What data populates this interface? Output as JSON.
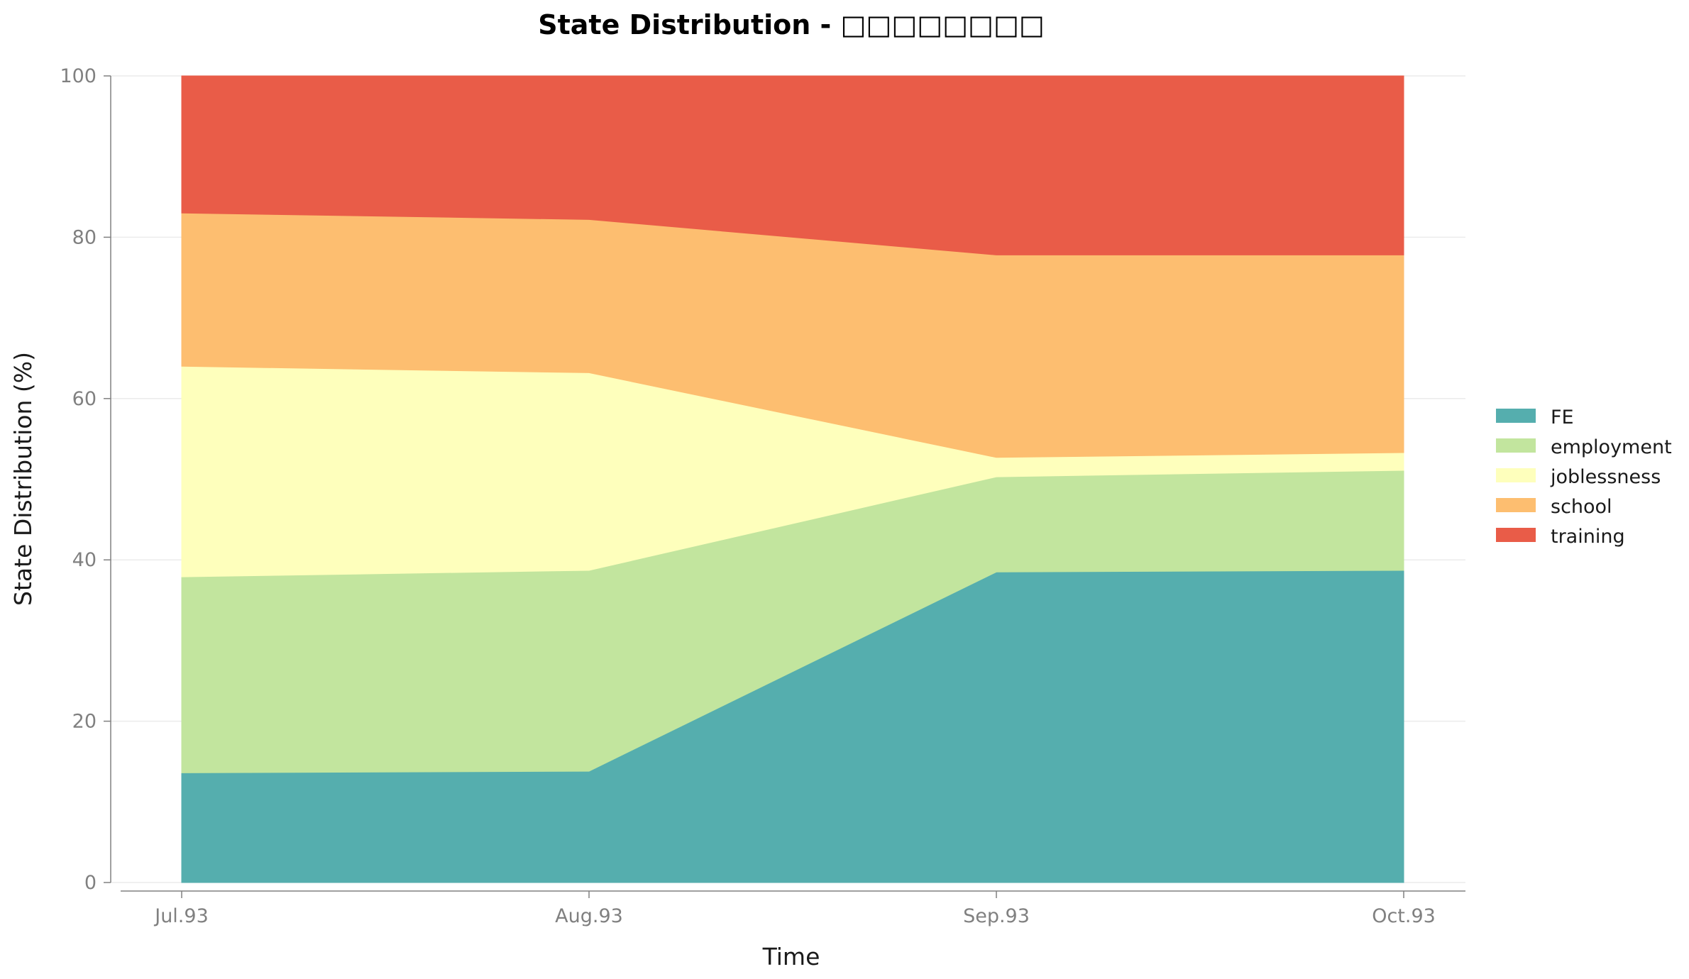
{
  "chart_data": {
    "type": "area",
    "stacked": true,
    "title": "State Distribution - □□□□□□□□",
    "xlabel": "Time",
    "ylabel": "State Distribution (%)",
    "ylim": [
      0,
      100
    ],
    "yticks": [
      0,
      20,
      40,
      60,
      80,
      100
    ],
    "categories": [
      "Jul.93",
      "Aug.93",
      "Sep.93",
      "Oct.93"
    ],
    "series": [
      {
        "name": "FE",
        "color": "#55aeae",
        "values": [
          13.6,
          13.8,
          38.5,
          38.7
        ]
      },
      {
        "name": "employment",
        "color": "#c2e59e",
        "values": [
          24.3,
          24.9,
          11.8,
          12.4
        ]
      },
      {
        "name": "joblessness",
        "color": "#feffbc",
        "values": [
          26.1,
          24.5,
          2.4,
          2.2
        ]
      },
      {
        "name": "school",
        "color": "#fdbe70",
        "values": [
          19.0,
          19.0,
          25.1,
          24.5
        ]
      },
      {
        "name": "training",
        "color": "#e95c48",
        "values": [
          17.0,
          17.8,
          22.2,
          22.2
        ]
      }
    ],
    "grid": "horizontal",
    "legend_position": "right"
  }
}
